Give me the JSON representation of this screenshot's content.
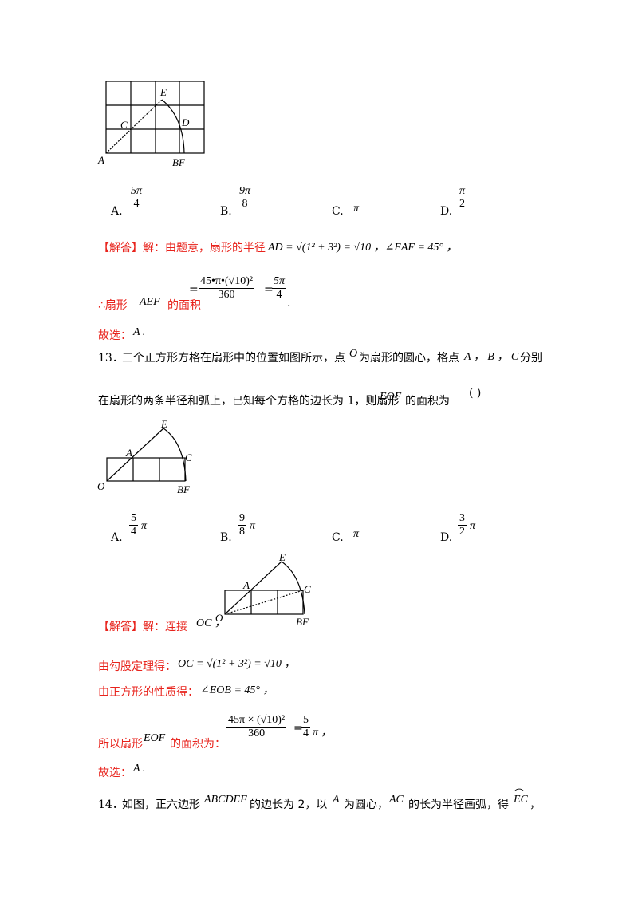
{
  "fig1": {
    "labels": {
      "E": "E",
      "C": "C",
      "D": "D",
      "A": "A",
      "BF": "BF"
    }
  },
  "q12_options": {
    "a": {
      "letter": "A.",
      "num": "5π",
      "den": "4"
    },
    "b": {
      "letter": "B.",
      "num": "9π",
      "den": "8"
    },
    "c": {
      "letter": "C.",
      "val": "π"
    },
    "d": {
      "letter": "D.",
      "num": "π",
      "den": "2"
    }
  },
  "q12_solution": {
    "line1_prefix": "【解答】解：由题意，扇形的半径",
    "line1_math": "AD = √(1² + 3²) = √10 ，∠EAF = 45° ，",
    "line2_prefix": "∴扇形",
    "line2_var": "AEF",
    "line2_suffix": "的面积",
    "line2_num": "45•π•(√10)²",
    "line2_den": "360",
    "line2_res_num": "5π",
    "line2_res_den": "4",
    "line3": "故选：",
    "line3_ans": "A ."
  },
  "q13": {
    "number": "13．",
    "text1_a": "三个正方形方格在扇形中的位置如图所示，点",
    "text1_o": "O",
    "text1_b": "为扇形的圆心，格点",
    "text1_pts": "A ， B ， C",
    "text1_c": "分别",
    "text2_a": "在扇形的两条半径和弧上，已知每个方格的边长为 1，则扇形",
    "text2_var": "EOF",
    "text2_b": "的面积为",
    "text2_paren": "(        )"
  },
  "fig2": {
    "labels": {
      "E": "E",
      "A": "A",
      "C": "C",
      "O": "O",
      "BF": "BF"
    }
  },
  "q13_options": {
    "a": {
      "letter": "A.",
      "num": "5",
      "den": "4",
      "tail": "π"
    },
    "b": {
      "letter": "B.",
      "num": "9",
      "den": "8",
      "tail": "π"
    },
    "c": {
      "letter": "C.",
      "val": "π"
    },
    "d": {
      "letter": "D.",
      "num": "3",
      "den": "2",
      "tail": "π"
    }
  },
  "fig3": {
    "labels": {
      "E": "E",
      "A": "A",
      "C": "C",
      "O": "O",
      "BF": "BF"
    }
  },
  "q13_solution": {
    "line1": "【解答】解：连接",
    "line1_math": "OC ，",
    "line2": "由勾股定理得：",
    "line2_math": "OC = √(1² + 3²) = √10 ，",
    "line3": "由正方形的性质得：",
    "line3_math": "∠EOB = 45° ，",
    "line4_a": "所以扇形",
    "line4_var": "EOF",
    "line4_b": "的面积为：",
    "line4_num": "45π × (√10)²",
    "line4_den": "360",
    "line4_res_num": "5",
    "line4_res_den": "4",
    "line4_tail": "π ，",
    "line5": "故选：",
    "line5_ans": "A ."
  },
  "q14": {
    "number": "14．",
    "text_a": "如图，正六边形",
    "text_var1": "ABCDEF",
    "text_b": "的边长为 2，以",
    "text_var2": "A",
    "text_c": "为圆心，",
    "text_var3": "AC",
    "text_d": "的长为半径画弧，得",
    "text_arc": "EC",
    "text_e": "，"
  }
}
